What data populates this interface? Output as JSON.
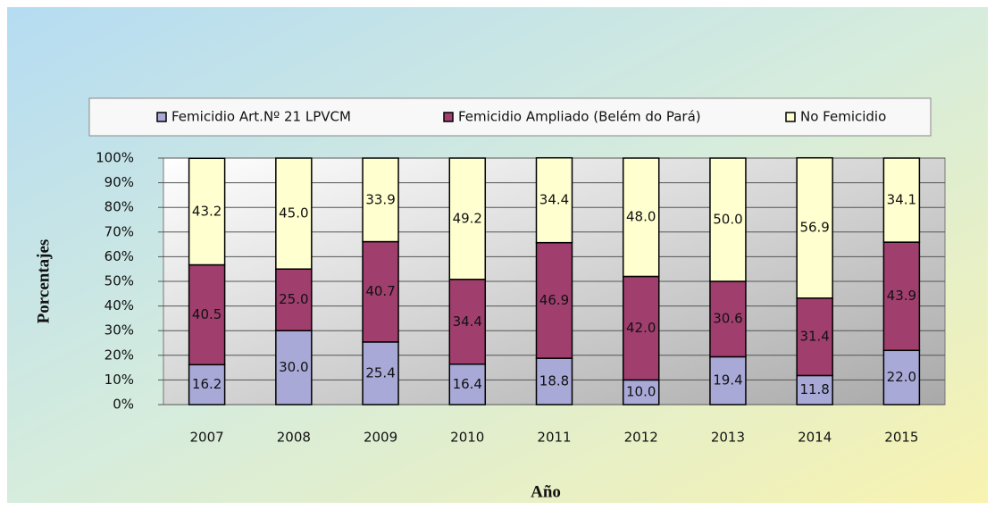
{
  "chart_data": {
    "type": "stacked-bar",
    "x_label": "Año",
    "y_label": "Porcentajes",
    "categories": [
      "2007",
      "2008",
      "2009",
      "2010",
      "2011",
      "2012",
      "2013",
      "2014",
      "2015"
    ],
    "series": [
      {
        "name": "Femicidio Art.Nº 21 LPVCM",
        "color": "#a9a9d8",
        "values": [
          16.2,
          30.0,
          25.4,
          16.4,
          18.8,
          10.0,
          19.4,
          11.8,
          22.0
        ],
        "value_labels": [
          "16.2",
          "30.0",
          "25.4",
          "16.4",
          "18.8",
          "10.0",
          "19.4",
          "11.8",
          "22.0"
        ]
      },
      {
        "name": "Femicidio Ampliado (Belém do Pará)",
        "color": "#a03f6e",
        "values": [
          40.5,
          25.0,
          40.7,
          34.4,
          46.9,
          42.0,
          30.6,
          31.4,
          43.9
        ],
        "value_labels": [
          "40.5",
          "25.0",
          "40.7",
          "34.4",
          "46.9",
          "42.0",
          "30.6",
          "31.4",
          "43.9"
        ]
      },
      {
        "name": "No Femicidio",
        "color": "#ffffd0",
        "values": [
          43.2,
          45.0,
          33.9,
          49.2,
          34.4,
          48.0,
          50.0,
          56.9,
          34.1
        ],
        "value_labels": [
          "43.2",
          "45.0",
          "33.9",
          "49.2",
          "34.4",
          "48.0",
          "50.0",
          "56.9",
          "34.1"
        ]
      }
    ],
    "ylim": [
      0,
      100
    ],
    "yticks": [
      {
        "value": 0,
        "label": "0%"
      },
      {
        "value": 10,
        "label": "10%"
      },
      {
        "value": 20,
        "label": "20%"
      },
      {
        "value": 30,
        "label": "30%"
      },
      {
        "value": 40,
        "label": "40%"
      },
      {
        "value": 50,
        "label": "50%"
      },
      {
        "value": 60,
        "label": "60%"
      },
      {
        "value": 70,
        "label": "70%"
      },
      {
        "value": 80,
        "label": "80%"
      },
      {
        "value": 90,
        "label": "90%"
      },
      {
        "value": 100,
        "label": "100%"
      }
    ],
    "grid": true,
    "legend": "top"
  }
}
